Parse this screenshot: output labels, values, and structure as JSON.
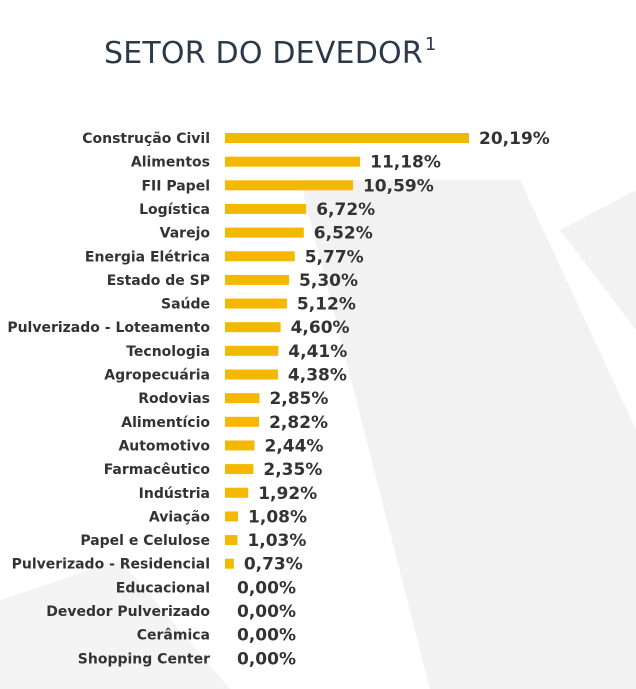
{
  "title": "SETOR DO DEVEDOR",
  "title_sup": "1",
  "colors": {
    "bar": "#f5b800",
    "text": "#333333",
    "title": "#2b3a4a",
    "watermark": "#f0f0f0"
  },
  "chart_data": {
    "type": "bar",
    "orientation": "horizontal",
    "title": "SETOR DO DEVEDOR",
    "xlabel": "",
    "ylabel": "",
    "grid": false,
    "xlim": [
      0,
      20.19
    ],
    "categories": [
      "Construção Civil",
      "Alimentos",
      "FII Papel",
      "Logística",
      "Varejo",
      "Energia Elétrica",
      "Estado de SP",
      "Saúde",
      "Pulverizado - Loteamento",
      "Tecnologia",
      "Agropecuária",
      "Rodovias",
      "Alimentício",
      "Automotivo",
      "Farmacêutico",
      "Indústria",
      "Aviação",
      "Papel e Celulose",
      "Pulverizado - Residencial",
      "Educacional",
      "Devedor Pulverizado",
      "Cerâmica",
      "Shopping Center"
    ],
    "values": [
      20.19,
      11.18,
      10.59,
      6.72,
      6.52,
      5.77,
      5.3,
      5.12,
      4.6,
      4.41,
      4.38,
      2.85,
      2.82,
      2.44,
      2.35,
      1.92,
      1.08,
      1.03,
      0.73,
      0.0,
      0.0,
      0.0,
      0.0
    ],
    "value_labels": [
      "20,19%",
      "11,18%",
      "10,59%",
      "6,72%",
      "6,52%",
      "5,77%",
      "5,30%",
      "5,12%",
      "4,60%",
      "4,41%",
      "4,38%",
      "2,85%",
      "2,82%",
      "2,44%",
      "2,35%",
      "1,92%",
      "1,08%",
      "1,03%",
      "0,73%",
      "0,00%",
      "0,00%",
      "0,00%",
      "0,00%"
    ]
  }
}
